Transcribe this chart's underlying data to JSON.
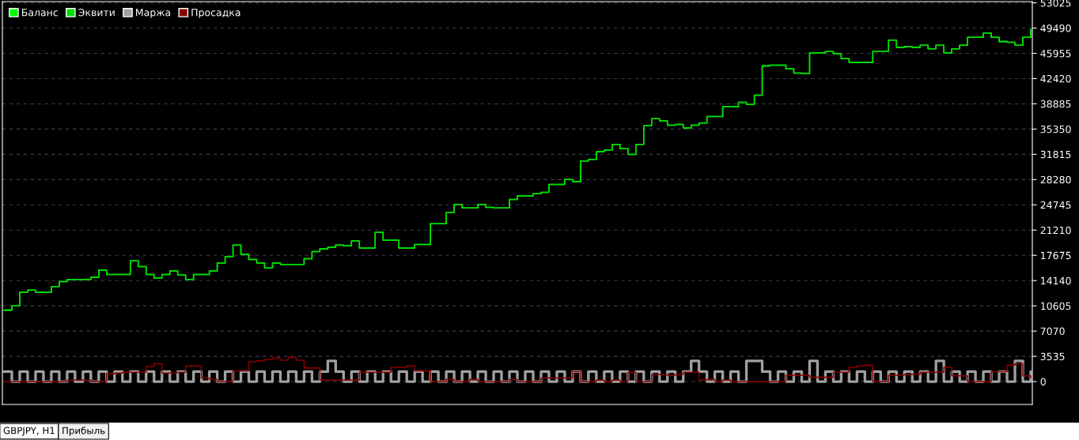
{
  "chart_data": {
    "type": "step",
    "categories": [
      null,
      null,
      null,
      null,
      null,
      null,
      null,
      null,
      null,
      null,
      null,
      null,
      null,
      null,
      null,
      null,
      null,
      null,
      null,
      null,
      null,
      null,
      null,
      null,
      null,
      null,
      null,
      null,
      null,
      null,
      null,
      null,
      null,
      null,
      null,
      null,
      null,
      null,
      null,
      null,
      null,
      null,
      null,
      null,
      null,
      null,
      null,
      null,
      null,
      null,
      null,
      null,
      null,
      null,
      null,
      null,
      null,
      null,
      null,
      null,
      null,
      null,
      null,
      null,
      null,
      null,
      null,
      null,
      null,
      null,
      null,
      null,
      null,
      null,
      null,
      null,
      null,
      null,
      null,
      null,
      null,
      null,
      null,
      null,
      null,
      null,
      null,
      null,
      null,
      null,
      null,
      null,
      null,
      null,
      null,
      null,
      null,
      null,
      null,
      null,
      null,
      null,
      null,
      null,
      null,
      null,
      null,
      null,
      null,
      null,
      null,
      null,
      null,
      null,
      null,
      null,
      null,
      null,
      null,
      null,
      null,
      null,
      null,
      null,
      null,
      null,
      null,
      null,
      null,
      null,
      null
    ],
    "series": [
      {
        "name": "Баланс",
        "color": "#00ff00",
        "values": [
          10000,
          10600,
          12500,
          12800,
          12500,
          12500,
          13300,
          14000,
          14300,
          14300,
          14300,
          14600,
          15600,
          15000,
          15000,
          15000,
          16900,
          16100,
          15000,
          14500,
          15000,
          15500,
          14900,
          14300,
          15000,
          15000,
          15500,
          16600,
          17500,
          19100,
          17800,
          17100,
          16600,
          15900,
          16600,
          16400,
          16400,
          16400,
          17200,
          18200,
          18600,
          18800,
          19100,
          19000,
          19700,
          18700,
          18700,
          20900,
          19800,
          19800,
          18700,
          18700,
          19200,
          19200,
          22100,
          22100,
          23700,
          24800,
          24300,
          24300,
          24800,
          24400,
          24300,
          24300,
          25500,
          26000,
          26000,
          26300,
          26500,
          27600,
          27600,
          28300,
          28000,
          30900,
          31100,
          32200,
          32400,
          33200,
          32600,
          31800,
          33200,
          35800,
          36800,
          36500,
          35900,
          36000,
          35500,
          35900,
          36200,
          37100,
          37100,
          38500,
          38500,
          39100,
          38800,
          40100,
          44200,
          44300,
          44300,
          43800,
          43200,
          43100,
          46000,
          46000,
          46200,
          45900,
          45200,
          44700,
          44700,
          44700,
          46200,
          46200,
          47800,
          46800,
          46900,
          46800,
          47100,
          46600,
          47100,
          46000,
          46600,
          47100,
          48200,
          48200,
          48800,
          48200,
          47600,
          47500,
          47100,
          48200,
          49300
        ]
      },
      {
        "name": "Эквити",
        "color": "#00e000",
        "values": [
          10000,
          10600,
          12500,
          12800,
          12500,
          12500,
          13300,
          14000,
          14300,
          14300,
          14300,
          14600,
          15600,
          15000,
          15000,
          15000,
          16900,
          16100,
          15000,
          14500,
          15000,
          15500,
          14900,
          14300,
          15000,
          15000,
          15500,
          16600,
          17500,
          19100,
          17800,
          17100,
          16600,
          15900,
          16600,
          16400,
          16400,
          16400,
          17200,
          18200,
          18600,
          18800,
          19100,
          19000,
          19700,
          18700,
          18700,
          20900,
          19800,
          19800,
          18700,
          18700,
          19200,
          19200,
          22100,
          22100,
          23700,
          24800,
          24300,
          24300,
          24800,
          24400,
          24300,
          24300,
          25500,
          26000,
          26000,
          26300,
          26500,
          27600,
          27600,
          28300,
          28000,
          30900,
          31100,
          32200,
          32400,
          33200,
          32600,
          31800,
          33200,
          35800,
          36800,
          36500,
          35900,
          36000,
          35500,
          35900,
          36200,
          37100,
          37100,
          38500,
          38500,
          39100,
          38800,
          40100,
          44200,
          44300,
          44300,
          43800,
          43200,
          43100,
          46000,
          46000,
          46200,
          45900,
          45200,
          44700,
          44700,
          44700,
          46200,
          46200,
          47800,
          46800,
          46900,
          46800,
          47100,
          46600,
          47100,
          46000,
          46600,
          47100,
          48200,
          48200,
          48800,
          48200,
          47600,
          47500,
          47100,
          48200,
          49300
        ]
      },
      {
        "name": "Маржа",
        "color": "#a0a0a0",
        "values": [
          1400,
          0,
          1400,
          0,
          1400,
          0,
          1400,
          0,
          1400,
          0,
          1400,
          0,
          1400,
          0,
          1400,
          0,
          1400,
          0,
          1400,
          0,
          1400,
          0,
          1400,
          0,
          1400,
          0,
          1400,
          0,
          1400,
          0,
          1400,
          0,
          1400,
          0,
          1400,
          0,
          1400,
          0,
          1400,
          0,
          1400,
          2900,
          1400,
          0,
          1400,
          0,
          1400,
          0,
          1400,
          0,
          1400,
          0,
          1400,
          0,
          1400,
          0,
          1400,
          0,
          1400,
          0,
          1400,
          0,
          1400,
          0,
          1400,
          0,
          1400,
          0,
          1400,
          0,
          1400,
          0,
          1400,
          0,
          1400,
          0,
          1400,
          0,
          1400,
          0,
          1400,
          0,
          1400,
          0,
          1400,
          0,
          1400,
          2900,
          1400,
          0,
          1400,
          0,
          1400,
          0,
          2900,
          2900,
          1400,
          0,
          1400,
          0,
          1400,
          0,
          2900,
          0,
          1400,
          0,
          1400,
          0,
          1400,
          0,
          1400,
          0,
          1400,
          0,
          1400,
          0,
          1400,
          0,
          2900,
          0,
          1400,
          0,
          1400,
          0,
          1400,
          0,
          1400,
          0,
          2900,
          0,
          1400
        ]
      },
      {
        "name": "Просадка",
        "color": "#8b0000",
        "values": [
          0,
          0,
          0,
          0,
          0,
          0,
          0,
          0,
          200,
          200,
          200,
          0,
          0,
          1100,
          1200,
          1300,
          1300,
          1300,
          2100,
          2500,
          1200,
          1200,
          1300,
          2200,
          2200,
          500,
          300,
          0,
          0,
          1500,
          1500,
          2800,
          2900,
          3100,
          3300,
          3000,
          3400,
          3000,
          1900,
          1900,
          200,
          200,
          200,
          200,
          200,
          1300,
          1300,
          1300,
          1300,
          2000,
          2000,
          2200,
          1500,
          1500,
          0,
          0,
          300,
          0,
          0,
          300,
          0,
          0,
          0,
          0,
          300,
          0,
          0,
          0,
          500,
          500,
          500,
          500,
          1400,
          0,
          0,
          200,
          0,
          200,
          0,
          1300,
          0,
          0,
          1000,
          1000,
          900,
          1000,
          1300,
          1300,
          200,
          300,
          0,
          200,
          0,
          0,
          0,
          0,
          0,
          0,
          0,
          900,
          900,
          900,
          600,
          600,
          600,
          1300,
          1300,
          2000,
          2200,
          2300,
          0,
          0,
          900,
          900,
          1000,
          1000,
          1300,
          1300,
          1300,
          2000,
          800,
          800,
          0,
          0,
          0,
          1400,
          1400,
          2300,
          2500,
          800,
          500
        ]
      }
    ],
    "ylim": [
      -3200,
      53200
    ],
    "yticks": [
      0,
      3535,
      7070,
      10605,
      14140,
      17675,
      21210,
      24745,
      28280,
      31815,
      35350,
      38885,
      42420,
      45955,
      49490,
      53025
    ],
    "tick_labels": "y",
    "grid": "y",
    "legend": "top left",
    "line_style": "solid",
    "annotations": [
      "GBPJPY, H1",
      "Прибыль"
    ]
  }
}
